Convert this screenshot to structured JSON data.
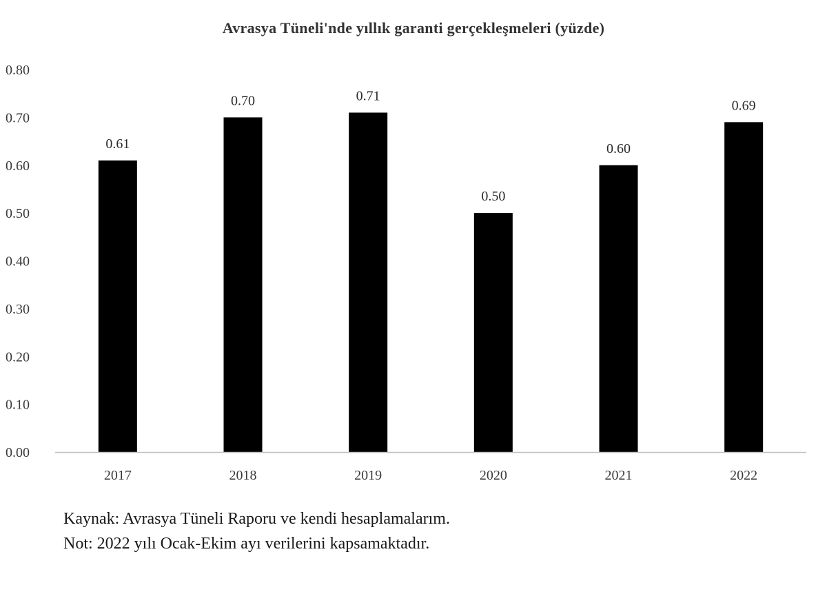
{
  "chart_data": {
    "type": "bar",
    "title": "Avrasya Tüneli'nde yıllık garanti gerçekleşmeleri (yüzde)",
    "xlabel": "",
    "ylabel": "",
    "categories": [
      "2017",
      "2018",
      "2019",
      "2020",
      "2021",
      "2022"
    ],
    "values": [
      0.61,
      0.7,
      0.71,
      0.5,
      0.6,
      0.69
    ],
    "data_labels": [
      "0.61",
      "0.70",
      "0.71",
      "0.50",
      "0.60",
      "0.69"
    ],
    "ylim": [
      0,
      0.8
    ],
    "yticks": [
      "0.00",
      "0.10",
      "0.20",
      "0.30",
      "0.40",
      "0.50",
      "0.60",
      "0.70",
      "0.80"
    ],
    "grid": false,
    "legend": "none",
    "bar_color": "#000000",
    "axis_color": "#bfbfbf"
  },
  "notes": {
    "source": "Kaynak: Avrasya Tüneli Raporu ve kendi hesaplamalarım.",
    "note": "Not: 2022 yılı Ocak-Ekim ayı verilerini kapsamaktadır."
  }
}
